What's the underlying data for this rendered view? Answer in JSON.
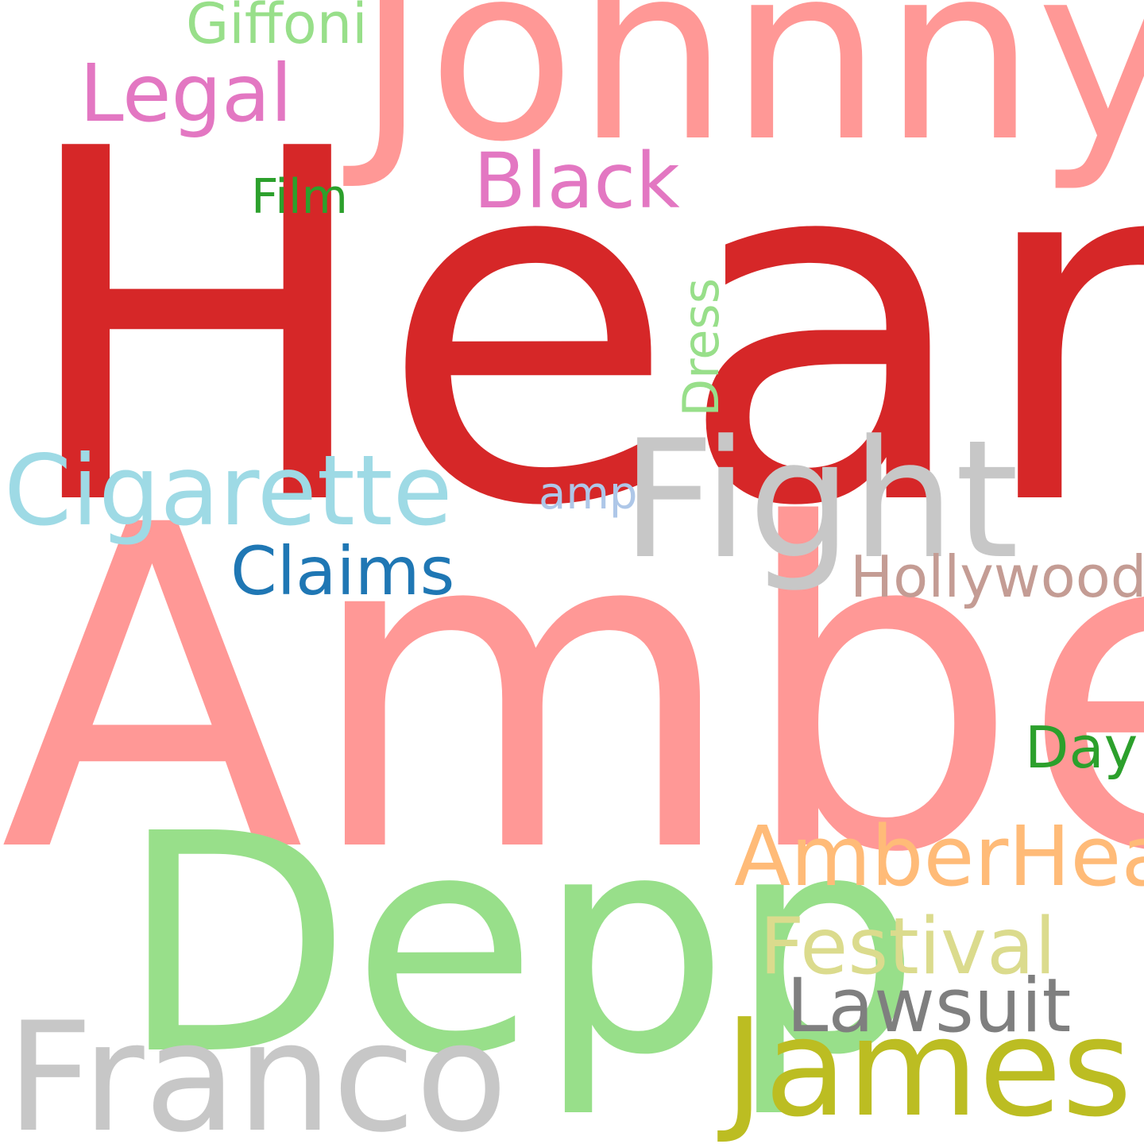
{
  "cloud": {
    "words": [
      {
        "text": "Heard",
        "color": "#d62728"
      },
      {
        "text": "Amber",
        "color": "#ff9896"
      },
      {
        "text": "Depp",
        "color": "#98df8a"
      },
      {
        "text": "Johnny",
        "color": "#ff9896"
      },
      {
        "text": "Fight",
        "color": "#c7c7c7"
      },
      {
        "text": "Franco",
        "color": "#c7c7c7"
      },
      {
        "text": "James",
        "color": "#bcbd22"
      },
      {
        "text": "Cigarette",
        "color": "#9edae5"
      },
      {
        "text": "AmberHeard",
        "color": "#ffbb78"
      },
      {
        "text": "Festival",
        "color": "#dbdb8d"
      },
      {
        "text": "Lawsuit",
        "color": "#7f7f7f"
      },
      {
        "text": "Legal",
        "color": "#e377c2"
      },
      {
        "text": "Black",
        "color": "#e377c2"
      },
      {
        "text": "Claims",
        "color": "#1f77b4"
      },
      {
        "text": "Hollywood",
        "color": "#c49c94"
      },
      {
        "text": "Day",
        "color": "#2ca02c"
      },
      {
        "text": "Giffoni",
        "color": "#98df8a"
      },
      {
        "text": "Film",
        "color": "#2ca02c"
      },
      {
        "text": "amp",
        "color": "#aec7e8"
      },
      {
        "text": "Dress",
        "color": "#98df8a"
      }
    ]
  }
}
